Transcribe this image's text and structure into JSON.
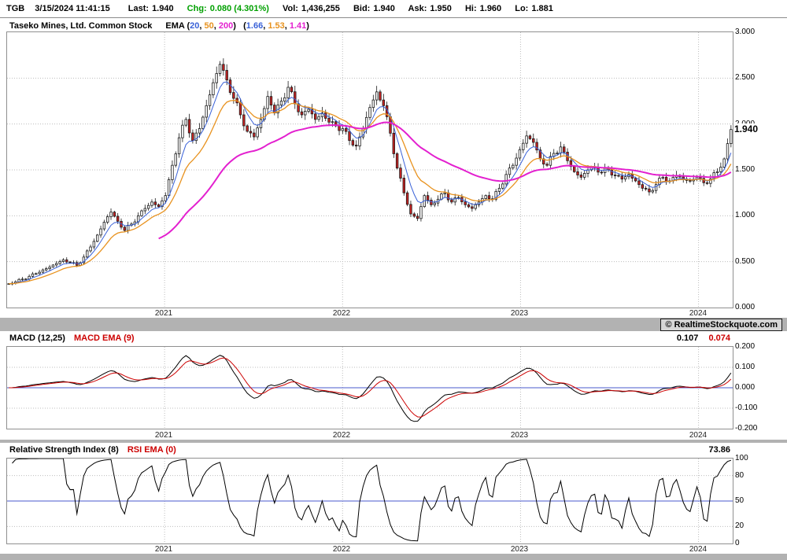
{
  "header": {
    "symbol": "TGB",
    "timestamp": "3/15/2024 11:41:15",
    "fields": [
      {
        "label": "Last:",
        "value": "1.940"
      },
      {
        "label": "Chg:",
        "value": "0.080 (4.301%)"
      },
      {
        "label": "Vol:",
        "value": "1,436,255"
      },
      {
        "label": "Bid:",
        "value": "1.940"
      },
      {
        "label": "Ask:",
        "value": "1.950"
      },
      {
        "label": "Hi:",
        "value": "1.960"
      },
      {
        "label": "Lo:",
        "value": "1.881"
      }
    ]
  },
  "watermark": "© RealtimeStockquote.com",
  "colors": {
    "text": "#000000",
    "red": "#cc0000",
    "green": "#00a000",
    "ema20": "#3a62d8",
    "ema50": "#e8921e",
    "ema200": "#e320cf",
    "ref_blue": "#4a5acc",
    "grid": "#bdbdbd",
    "candle_up": "#ffffff",
    "candle_down": "#cc2222",
    "candle_stroke": "#1b1b1b",
    "band": "#b2b2b2"
  },
  "chart_data": [
    {
      "type": "candlestick",
      "title": "Taseko Mines, Ltd. Common Stock",
      "ema_periods": [
        20,
        50,
        200
      ],
      "ema_values": [
        1.66,
        1.53,
        1.41
      ],
      "legend_tokens": [
        {
          "text": "EMA ",
          "color": "text"
        },
        {
          "text": "(",
          "color": "text"
        },
        {
          "text": "20",
          "color": "ema20"
        },
        {
          "text": ", ",
          "color": "text"
        },
        {
          "text": "50",
          "color": "ema50"
        },
        {
          "text": ", ",
          "color": "text"
        },
        {
          "text": "200",
          "color": "ema200"
        },
        {
          "text": ")",
          "color": "text"
        },
        {
          "text": "   (",
          "color": "text"
        },
        {
          "text": "1.66",
          "color": "ema20"
        },
        {
          "text": ", ",
          "color": "text"
        },
        {
          "text": "1.53",
          "color": "ema50"
        },
        {
          "text": ", ",
          "color": "text"
        },
        {
          "text": "1.41",
          "color": "ema200"
        },
        {
          "text": ")",
          "color": "text"
        }
      ],
      "ylim": [
        0,
        3
      ],
      "yticks": [
        "3.000",
        "2.500",
        "2.000",
        "1.500",
        "1.000",
        "0.500",
        "0.000"
      ],
      "last_price": "1.940",
      "x_start": 2020.115,
      "x_end": 2024.192,
      "year_ticks": [
        2021,
        2022,
        2023,
        2024
      ],
      "closes": [
        0.26,
        0.28,
        0.31,
        0.34,
        0.37,
        0.41,
        0.44,
        0.48,
        0.52,
        0.49,
        0.46,
        0.55,
        0.66,
        0.79,
        0.93,
        1.04,
        0.94,
        0.84,
        0.91,
        1.0,
        1.08,
        1.15,
        1.1,
        1.22,
        1.55,
        1.85,
        2.05,
        1.82,
        1.95,
        2.2,
        2.45,
        2.65,
        2.48,
        2.28,
        2.1,
        1.92,
        1.86,
        2.05,
        2.3,
        2.12,
        2.25,
        2.4,
        2.22,
        2.1,
        2.16,
        2.05,
        2.12,
        2.02,
        1.98,
        1.95,
        1.82,
        1.76,
        1.95,
        2.18,
        2.35,
        2.2,
        1.9,
        1.52,
        1.25,
        1.02,
        0.97,
        1.22,
        1.12,
        1.18,
        1.25,
        1.15,
        1.2,
        1.12,
        1.08,
        1.15,
        1.22,
        1.18,
        1.3,
        1.45,
        1.55,
        1.72,
        1.87,
        1.8,
        1.62,
        1.55,
        1.68,
        1.75,
        1.6,
        1.48,
        1.42,
        1.5,
        1.53,
        1.47,
        1.5,
        1.44,
        1.4,
        1.45,
        1.38,
        1.3,
        1.26,
        1.34,
        1.42,
        1.38,
        1.44,
        1.4,
        1.38,
        1.42,
        1.36,
        1.4,
        1.48,
        1.62,
        1.94
      ]
    },
    {
      "type": "line",
      "title": "MACD (12,25)",
      "signal_title": "MACD EMA (9)",
      "value": "0.107",
      "signal_value": "0.074",
      "ylim": [
        -0.2,
        0.2
      ],
      "yticks": [
        "0.200",
        "0.100",
        "0.000",
        "-0.100",
        "-0.200"
      ],
      "zero_line": 0
    },
    {
      "type": "line",
      "title": "Relative Strength Index (8)",
      "signal_title": "RSI EMA (0)",
      "value": "73.86",
      "ylim": [
        0,
        100
      ],
      "yticks": [
        "100",
        "80",
        "50",
        "20",
        "0"
      ],
      "ref_level": 50
    }
  ]
}
